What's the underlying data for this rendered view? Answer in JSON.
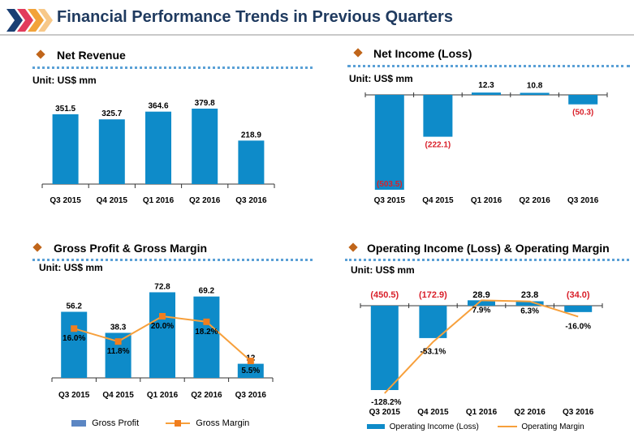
{
  "header": {
    "title": "Financial Performance Trends in Previous Quarters"
  },
  "colors": {
    "bar": "#0e8bc9",
    "line": "#f7a03c",
    "marker": "#f07e1e",
    "neg": "#d9202a",
    "title": "#1f3a5f",
    "diamond": "#c0651a"
  },
  "chart_data": [
    {
      "id": "net_revenue",
      "type": "bar",
      "title": "Net Revenue",
      "unit": "Unit: US$ mm",
      "categories": [
        "Q3 2015",
        "Q4 2015",
        "Q1 2016",
        "Q2 2016",
        "Q3 2016"
      ],
      "values": [
        351.5,
        325.7,
        364.6,
        379.8,
        218.9
      ],
      "labels": [
        "351.5",
        "325.7",
        "364.6",
        "379.8",
        "218.9"
      ],
      "ylim": [
        0,
        400
      ]
    },
    {
      "id": "net_income",
      "type": "bar",
      "title": "Net Income (Loss)",
      "unit": "Unit: US$ mm",
      "categories": [
        "Q3 2015",
        "Q4 2015",
        "Q1 2016",
        "Q2 2016",
        "Q3 2016"
      ],
      "values": [
        -503.5,
        -222.1,
        12.3,
        10.8,
        -50.3
      ],
      "labels": [
        "(503.5)",
        "(222.1)",
        "12.3",
        "10.8",
        "(50.3)"
      ],
      "ylim": [
        -520,
        0
      ]
    },
    {
      "id": "gross_profit",
      "type": "bar+line",
      "title": "Gross Profit & Gross Margin",
      "unit": "Unit: US$ mm",
      "categories": [
        "Q3 2015",
        "Q4 2015",
        "Q1 2016",
        "Q2 2016",
        "Q3 2016"
      ],
      "series": [
        {
          "name": "Gross Profit",
          "type": "bar",
          "values": [
            56.2,
            38.3,
            72.8,
            69.2,
            12
          ],
          "labels": [
            "56.2",
            "38.3",
            "72.8",
            "69.2",
            "12"
          ]
        },
        {
          "name": "Gross Margin",
          "type": "line",
          "values": [
            16.0,
            11.8,
            20.0,
            18.2,
            5.5
          ],
          "labels": [
            "16.0%",
            "11.8%",
            "20.0%",
            "18.2%",
            "5.5%"
          ]
        }
      ],
      "ylim": [
        0,
        80
      ],
      "legend": [
        "Gross Profit",
        "Gross Margin"
      ]
    },
    {
      "id": "operating_income",
      "type": "bar+line",
      "title": "Operating Income (Loss) & Operating Margin",
      "unit": "Unit: US$ mm",
      "categories": [
        "Q3 2015",
        "Q4 2015",
        "Q1 2016",
        "Q2 2016",
        "Q3 2016"
      ],
      "series": [
        {
          "name": "Operating Income (Loss)",
          "type": "bar",
          "values": [
            -450.5,
            -172.9,
            28.9,
            23.8,
            -34.0
          ],
          "labels": [
            "(450.5)",
            "(172.9)",
            "28.9",
            "23.8",
            "(34.0)"
          ]
        },
        {
          "name": "Operating Margin",
          "type": "line",
          "values": [
            -128.2,
            -53.1,
            7.9,
            6.3,
            -16.0
          ],
          "labels": [
            "-128.2%",
            "-53.1%",
            "7.9%",
            "6.3%",
            "-16.0%"
          ]
        }
      ],
      "ylim": [
        -460,
        40
      ],
      "legend": [
        "Operating Income (Loss)",
        "Operating Margin"
      ]
    }
  ]
}
